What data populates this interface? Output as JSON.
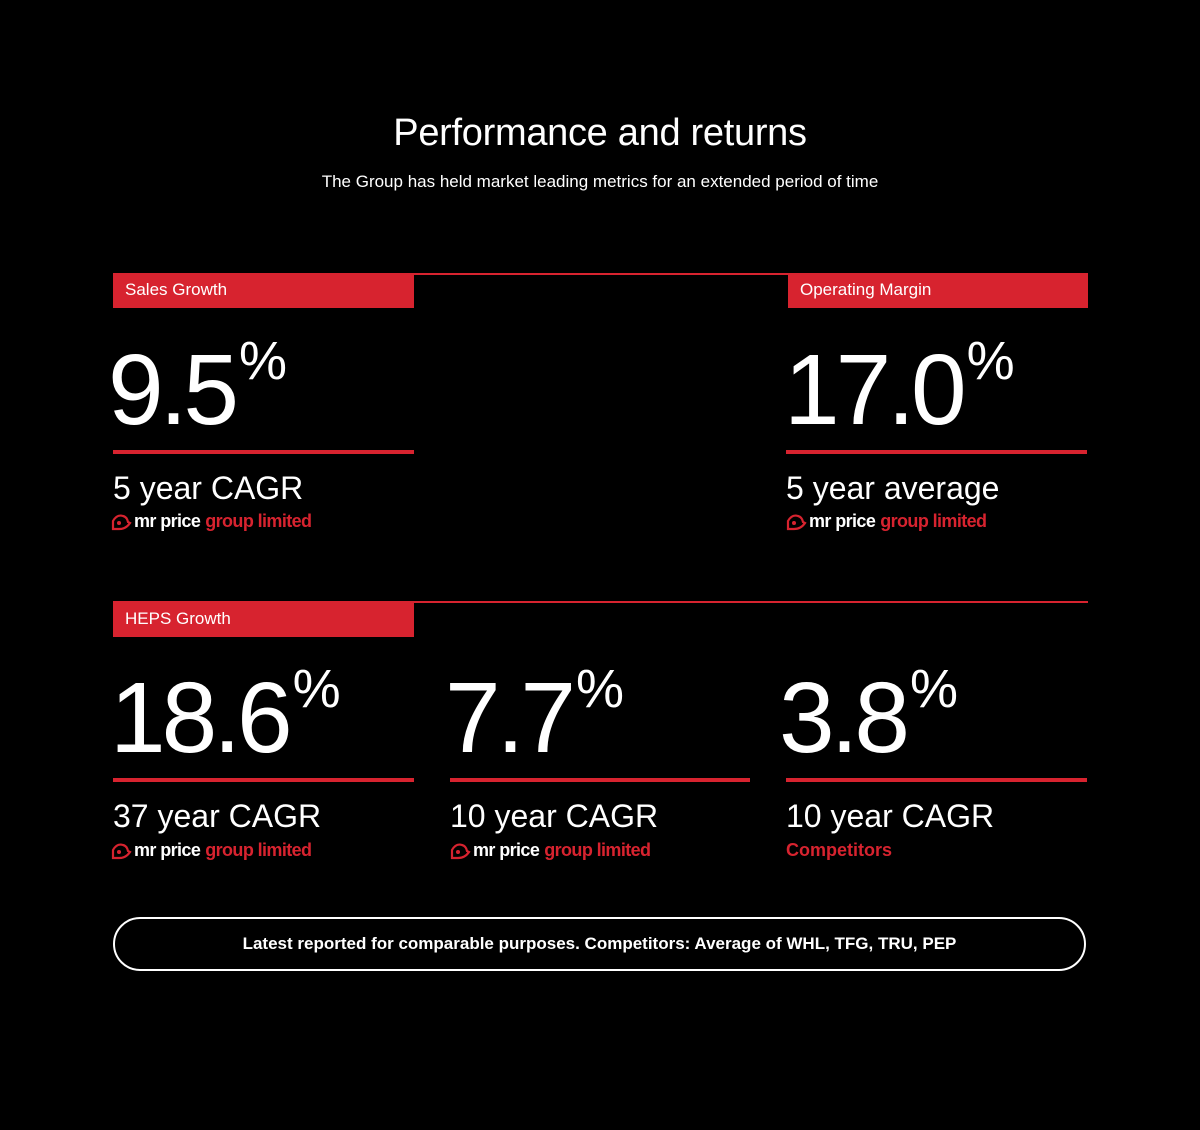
{
  "header": {
    "title": "Performance and returns",
    "subtitle": "The Group has held market leading metrics for an extended period of time"
  },
  "brand": {
    "part1": "mr price",
    "part2": "group limited",
    "icon": "shopping-bag-logo-icon"
  },
  "sections": {
    "sales_growth": {
      "label": "Sales Growth",
      "value": "9.5",
      "unit": "%",
      "caption": "5 year CAGR"
    },
    "operating_margin": {
      "label": "Operating Margin",
      "value": "17.0",
      "unit": "%",
      "caption": "5 year average"
    },
    "heps_growth": {
      "label": "HEPS Growth",
      "items": [
        {
          "value": "18.6",
          "unit": "%",
          "caption": "37 year CAGR"
        },
        {
          "value": "7.7",
          "unit": "%",
          "caption": "10 year CAGR"
        },
        {
          "value": "3.8",
          "unit": "%",
          "caption": "10 year CAGR",
          "source": "Competitors"
        }
      ]
    }
  },
  "footnote": "Latest reported for comparable purposes. Competitors: Average of WHL, TFG, TRU, PEP",
  "colors": {
    "accent": "#d7232f",
    "background": "#000000",
    "text": "#ffffff"
  }
}
